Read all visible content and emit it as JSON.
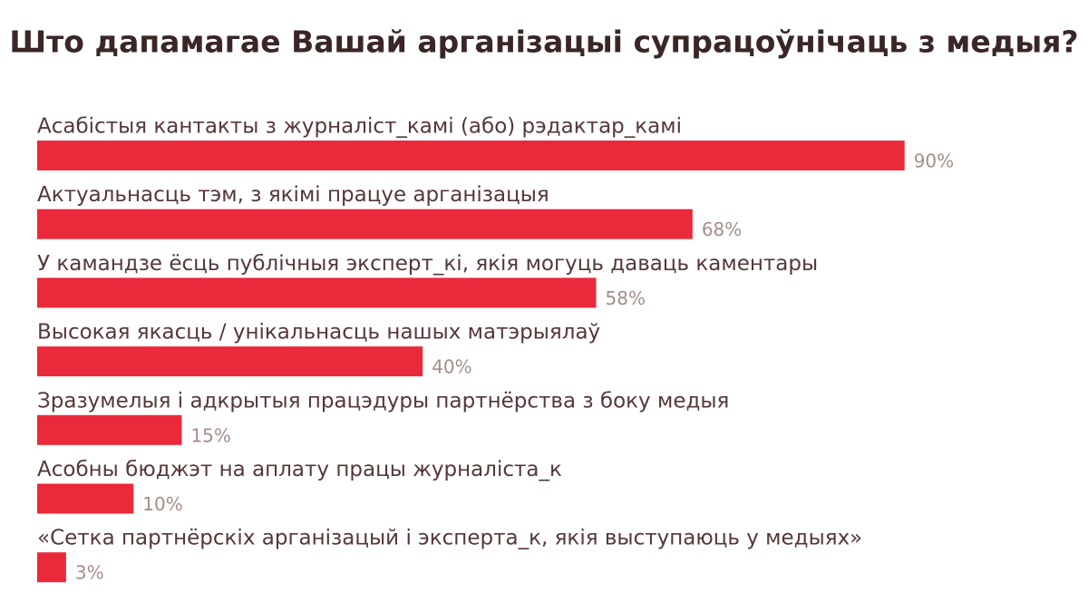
{
  "chart_data": {
    "type": "bar",
    "orientation": "horizontal",
    "title": "Што дапамагае Вашай арганізацыі супрацоўнічаць з медыя?",
    "categories": [
      "Асабістыя кантакты з журналіст_камі (або) рэдактар_камі",
      "Актуальнасць тэм, з якімі працуе арганізацыя",
      "У камандзе ёсць публічныя эксперт_кі, якія могуць даваць каментары",
      "Высокая якасць / унікальнасць нашых матэрыялаў",
      "Зразумелыя і адкрытыя працэдуры партнёрства з боку медыя",
      "Асобны бюджэт на аплату працы журналіста_к",
      "«Сетка партнёрскіх арганізацый і эксперта_к, якія выступаюць у медыях»"
    ],
    "values": [
      90,
      68,
      58,
      40,
      15,
      10,
      3
    ],
    "value_labels": [
      "90%",
      "68%",
      "58%",
      "40%",
      "15%",
      "10%",
      "3%"
    ],
    "color": "#ea2a3b",
    "xlim": [
      0,
      100
    ]
  }
}
